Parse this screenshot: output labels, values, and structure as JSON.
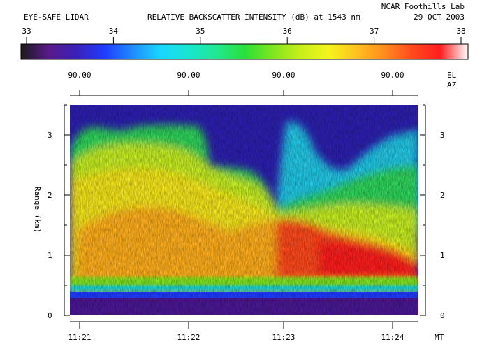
{
  "header": {
    "instrument": "EYE-SAFE LIDAR",
    "title": "RELATIVE BACKSCATTER INTENSITY (dB) at 1543 nm",
    "lab": "NCAR Foothills Lab",
    "date": "29 OCT 2003"
  },
  "colorbar": {
    "min": 33,
    "max": 38,
    "ticks": [
      "33",
      "34",
      "35",
      "36",
      "37",
      "38"
    ],
    "palette": [
      "#1a1a1a",
      "#5a1a8c",
      "#3a22b8",
      "#1f3dff",
      "#1f8cff",
      "#19d7ff",
      "#19e6d0",
      "#22e890",
      "#2adf3a",
      "#7ee61e",
      "#c8ee1a",
      "#f5f51e",
      "#ffc21e",
      "#ff8c1e",
      "#ff4a1e",
      "#ff1e1e",
      "#ffffff"
    ]
  },
  "angles": {
    "el_label": "EL",
    "az_label": "AZ",
    "values": [
      "90.00",
      "90.00",
      "90.00",
      "90.00"
    ]
  },
  "chart_data": {
    "type": "heatmap",
    "title": "RELATIVE BACKSCATTER INTENSITY (dB) at 1543 nm",
    "ylabel": "Range (km)",
    "xlabel_unit": "MT",
    "ylim": [
      0,
      3.5
    ],
    "yticks": [
      "0",
      "1",
      "2",
      "3"
    ],
    "xticks": [
      "11:21",
      "11:22",
      "11:23",
      "11:24"
    ],
    "value_range_db": [
      33,
      38
    ],
    "cloud_top_km": [
      {
        "time": "11:20.8",
        "km": 2.8
      },
      {
        "time": "11:21",
        "km": 3.2
      },
      {
        "time": "11:21.3",
        "km": 3.2
      },
      {
        "time": "11:21.7",
        "km": 3.2
      },
      {
        "time": "11:22.2",
        "km": 2.5
      },
      {
        "time": "11:22.6",
        "km": 2.3
      },
      {
        "time": "11:23",
        "km": 1.8
      },
      {
        "time": "11:23.4",
        "km": 2.2
      },
      {
        "time": "11:23.8",
        "km": 2.5
      },
      {
        "time": "11:24.2",
        "km": 2.8
      }
    ]
  }
}
